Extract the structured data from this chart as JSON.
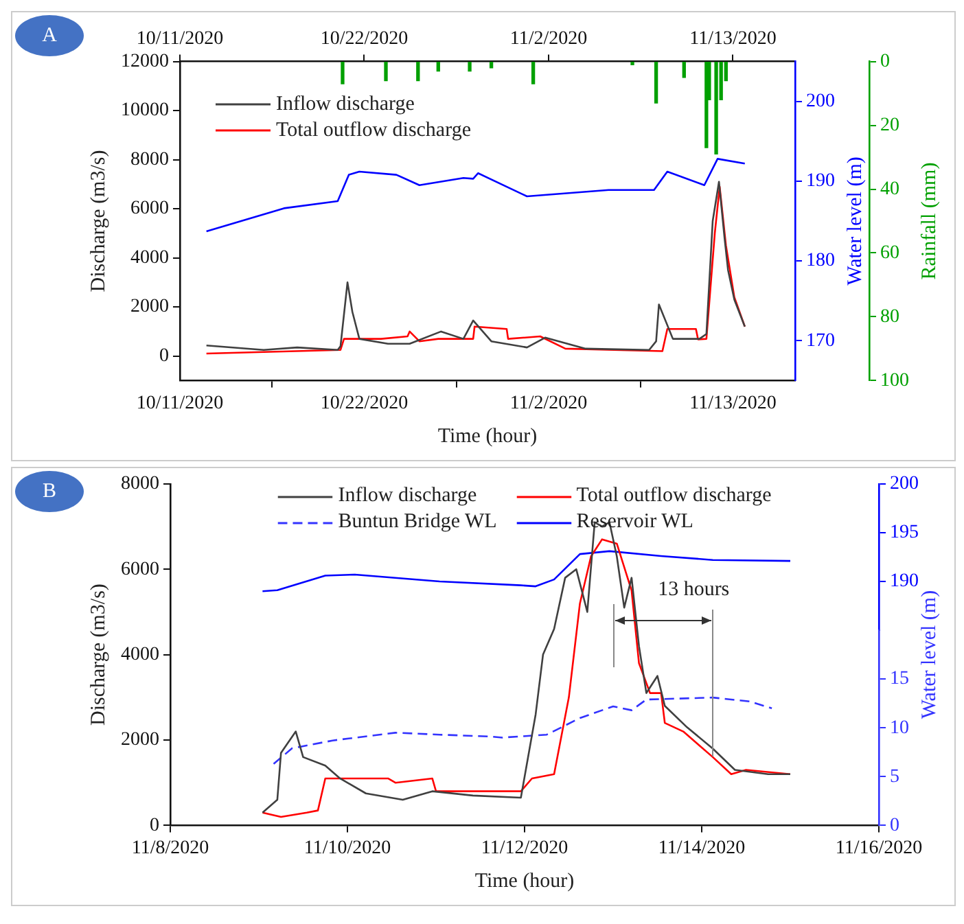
{
  "chart_data": [
    {
      "type": "line",
      "annotations": [
        "A"
      ],
      "xlabel": "Time (hour)",
      "ylabel": "Discharge (m3/s)",
      "y2label": "Water level (m)",
      "y3label": "Rainfall (mm)",
      "xlim": [
        "2020-10-11",
        "2020-11-16T17:00"
      ],
      "xticks": [
        {
          "value": "2020-10-11",
          "label": "10/11/2020"
        },
        {
          "value": "2020-10-22",
          "label": "10/22/2020"
        },
        {
          "value": "2020-11-02",
          "label": "11/2/2020"
        },
        {
          "value": "2020-11-13",
          "label": "11/13/2020"
        }
      ],
      "x2lim": [
        "2020-10-11",
        "2020-11-16T17:00"
      ],
      "x2ticks": [
        {
          "value": "2020-10-11",
          "label": "10/11/2020"
        },
        {
          "value": "2020-10-22",
          "label": "10/22/2020"
        },
        {
          "value": "2020-11-02",
          "label": "11/2/2020"
        },
        {
          "value": "2020-11-13",
          "label": "11/13/2020"
        }
      ],
      "ylim": [
        -1000,
        12000
      ],
      "yticks": [
        0,
        2000,
        4000,
        6000,
        8000,
        10000,
        12000
      ],
      "y2lim": [
        165,
        205
      ],
      "y2ticks": [
        170,
        180,
        190,
        200
      ],
      "y3lim": [
        100,
        0
      ],
      "y3ticks": [
        0,
        20,
        40,
        60,
        80,
        100
      ],
      "legend": "top left",
      "series": [
        {
          "name": "Inflow discharge",
          "color": "#404040",
          "x": [
            "2020-10-12T14:00",
            "2020-10-16T00:00",
            "2020-10-18T00:00",
            "2020-10-20T10:00",
            "2020-10-20T14:00",
            "2020-10-21T00:00",
            "2020-10-21T07:00",
            "2020-10-21T17:00",
            "2020-10-23T10:00",
            "2020-10-24T17:00",
            "2020-10-26T14:00",
            "2020-10-27T22:00",
            "2020-10-28T12:00",
            "2020-10-29T14:00",
            "2020-10-31T17:00",
            "2020-11-01T19:00",
            "2020-11-04T05:00",
            "2020-11-08T00:00",
            "2020-11-08T10:00",
            "2020-11-08T14:00",
            "2020-11-09T10:00",
            "2020-11-11T00:00",
            "2020-11-11T10:00",
            "2020-11-11T19:00",
            "2020-11-12T04:00",
            "2020-11-12T12:00",
            "2020-11-12T17:00",
            "2020-11-13T02:00",
            "2020-11-13T17:00"
          ],
          "values": [
            430,
            250,
            350,
            250,
            400,
            3000,
            1800,
            700,
            500,
            500,
            1000,
            700,
            1450,
            600,
            350,
            750,
            300,
            250,
            600,
            2100,
            700,
            700,
            900,
            5500,
            7100,
            4800,
            3500,
            2300,
            1200
          ]
        },
        {
          "name": "Total outflow discharge",
          "color": "#ff0000",
          "x": [
            "2020-10-12T14:00",
            "2020-10-20T14:00",
            "2020-10-20T19:00",
            "2020-10-23T00:00",
            "2020-10-24T14:00",
            "2020-10-24T17:00",
            "2020-10-25T07:00",
            "2020-10-26T10:00",
            "2020-10-28T12:00",
            "2020-10-28T14:00",
            "2020-10-30T12:00",
            "2020-10-30T14:00",
            "2020-11-01T12:00",
            "2020-11-03T00:00",
            "2020-11-08T19:00",
            "2020-11-09T02:00",
            "2020-11-10T19:00",
            "2020-11-10T22:00",
            "2020-11-11T10:00",
            "2020-11-11T22:00",
            "2020-11-12T05:00",
            "2020-11-12T14:00",
            "2020-11-13T02:00",
            "2020-11-13T17:00"
          ],
          "values": [
            100,
            250,
            700,
            700,
            800,
            1000,
            600,
            700,
            700,
            1200,
            1100,
            700,
            800,
            300,
            200,
            1100,
            1100,
            680,
            700,
            5000,
            6900,
            4500,
            2400,
            1200
          ]
        },
        {
          "color": "#0000ff",
          "axis": "y2",
          "x": [
            "2020-10-12T14:00",
            "2020-10-17T05:00",
            "2020-10-20T10:00",
            "2020-10-21T02:00",
            "2020-10-21T17:00",
            "2020-10-23T22:00",
            "2020-10-25T07:00",
            "2020-10-27T22:00",
            "2020-10-28T12:00",
            "2020-10-28T19:00",
            "2020-10-31T17:00",
            "2020-11-05T14:00",
            "2020-11-08T07:00",
            "2020-11-09T02:00",
            "2020-11-11T07:00",
            "2020-11-12T02:00",
            "2020-11-13T17:00"
          ],
          "values": [
            183.7,
            186.6,
            187.5,
            190.8,
            191.2,
            190.8,
            189.5,
            190.4,
            190.3,
            191.0,
            188.1,
            188.9,
            188.9,
            191.2,
            189.5,
            192.8,
            192.2
          ]
        },
        {
          "type": "bar",
          "color": "#00a000",
          "axis": "y3",
          "x": [
            "2020-10-20T17:00",
            "2020-10-23T07:00",
            "2020-10-25T05:00",
            "2020-10-26T10:00",
            "2020-10-28T07:00",
            "2020-10-29T14:00",
            "2020-11-01T02:00",
            "2020-11-07T00:00",
            "2020-11-08T10:00",
            "2020-11-10T02:00",
            "2020-11-11T10:00",
            "2020-11-11T14:00",
            "2020-11-12T00:00",
            "2020-11-12T07:00",
            "2020-11-12T14:00"
          ],
          "values": [
            7,
            6,
            6,
            3,
            3,
            2,
            7,
            1,
            13,
            5,
            27,
            12,
            29,
            12,
            6
          ]
        }
      ]
    },
    {
      "type": "line",
      "annotations": [
        "B",
        {
          "text": "13 hours",
          "x": "2020-11-14T03:00",
          "y": 1600
        }
      ],
      "xlabel": "Time (hour)",
      "ylabel": "Discharge (m3/s)",
      "y2label": "Water level (m)",
      "xlim": [
        "2020-11-08",
        "2020-11-16"
      ],
      "xticks": [
        {
          "value": "2020-11-08",
          "label": "11/8/2020"
        },
        {
          "value": "2020-11-10",
          "label": "11/10/2020"
        },
        {
          "value": "2020-11-12",
          "label": "11/12/2020"
        },
        {
          "value": "2020-11-14",
          "label": "11/14/2020"
        },
        {
          "value": "2020-11-16",
          "label": "11/16/2020"
        }
      ],
      "ylim": [
        0,
        8000
      ],
      "yticks": [
        0,
        2000,
        4000,
        6000,
        8000
      ],
      "y2lim": [
        0,
        20
      ],
      "y2ticks": [
        0,
        5,
        10,
        15
      ],
      "y3lim": [
        185,
        200
      ],
      "y3ticks": [
        190,
        195,
        200
      ],
      "legend": "top",
      "series": [
        {
          "name": "Inflow discharge",
          "color": "#404040",
          "x": [
            "2020-11-09T01:00",
            "2020-11-09T05:00",
            "2020-11-09T06:00",
            "2020-11-09T10:00",
            "2020-11-09T12:00",
            "2020-11-09T18:00",
            "2020-11-09T22:00",
            "2020-11-10T05:00",
            "2020-11-10T15:00",
            "2020-11-10T23:00",
            "2020-11-11T10:00",
            "2020-11-11T23:00",
            "2020-11-12T03:00",
            "2020-11-12T05:00",
            "2020-11-12T08:00",
            "2020-11-12T11:00",
            "2020-11-12T14:00",
            "2020-11-12T17:00",
            "2020-11-12T19:00",
            "2020-11-12T21:00",
            "2020-11-12T23:00",
            "2020-11-13T01:00",
            "2020-11-13T03:00",
            "2020-11-13T05:00",
            "2020-11-13T07:00",
            "2020-11-13T09:00",
            "2020-11-13T12:00",
            "2020-11-13T14:00",
            "2020-11-13T20:00",
            "2020-11-14T03:00",
            "2020-11-14T09:00",
            "2020-11-14T18:00",
            "2020-11-15T00:00"
          ],
          "values": [
            300,
            600,
            1700,
            2200,
            1600,
            1400,
            1100,
            750,
            600,
            800,
            700,
            650,
            2600,
            4000,
            4600,
            5800,
            6000,
            5000,
            7100,
            7000,
            7100,
            6300,
            5100,
            5800,
            4200,
            3100,
            3500,
            2800,
            2300,
            1800,
            1300,
            1200,
            1200
          ]
        },
        {
          "name": "Total outflow discharge",
          "color": "#ff0000",
          "x": [
            "2020-11-09T01:00",
            "2020-11-09T06:00",
            "2020-11-09T13:00",
            "2020-11-09T16:00",
            "2020-11-09T18:00",
            "2020-11-10T11:00",
            "2020-11-10T13:00",
            "2020-11-10T23:00",
            "2020-11-11T00:00",
            "2020-11-11T23:00",
            "2020-11-12T02:00",
            "2020-11-12T08:00",
            "2020-11-12T12:00",
            "2020-11-12T15:00",
            "2020-11-12T18:00",
            "2020-11-12T21:00",
            "2020-11-13T01:00",
            "2020-11-13T05:00",
            "2020-11-13T07:00",
            "2020-11-13T10:00",
            "2020-11-13T13:00",
            "2020-11-13T14:00",
            "2020-11-13T19:00",
            "2020-11-13T23:00",
            "2020-11-14T03:00",
            "2020-11-14T08:00",
            "2020-11-14T12:00",
            "2020-11-15T00:00"
          ],
          "values": [
            300,
            200,
            300,
            350,
            1100,
            1100,
            1000,
            1100,
            800,
            800,
            1100,
            1200,
            3000,
            5200,
            6300,
            6700,
            6600,
            5500,
            3800,
            3100,
            3100,
            2400,
            2200,
            1900,
            1600,
            1200,
            1300,
            1200
          ]
        },
        {
          "name": "Buntun Bridge WL",
          "color": "#3333ff",
          "axis": "y2",
          "line_style": "dashed",
          "x": [
            "2020-11-09T04:00",
            "2020-11-09T09:00",
            "2020-11-09T20:00",
            "2020-11-10T13:00",
            "2020-11-11T01:00",
            "2020-11-11T15:00",
            "2020-11-11T18:00",
            "2020-11-12T06:00",
            "2020-11-12T15:00",
            "2020-11-13T00:00",
            "2020-11-13T05:00",
            "2020-11-13T09:00",
            "2020-11-13T18:00",
            "2020-11-14T03:00",
            "2020-11-14T13:00",
            "2020-11-14T19:00"
          ],
          "values": [
            6.3,
            7.9,
            8.7,
            9.5,
            9.3,
            9.1,
            9.0,
            9.3,
            11.0,
            12.2,
            11.8,
            12.9,
            13.0,
            13.1,
            12.7,
            12.0
          ]
        },
        {
          "name": "Reservoir WL",
          "color": "#0000ff",
          "axis": "y3",
          "x": [
            "2020-11-09T01:00",
            "2020-11-09T05:00",
            "2020-11-09T18:00",
            "2020-11-10T02:00",
            "2020-11-11T01:00",
            "2020-11-11T23:00",
            "2020-11-12T03:00",
            "2020-11-12T08:00",
            "2020-11-12T15:00",
            "2020-11-12T23:00",
            "2020-11-13T13:00",
            "2020-11-14T03:00",
            "2020-11-15T00:00"
          ],
          "values": [
            189.0,
            189.1,
            190.6,
            190.7,
            190.0,
            189.6,
            189.5,
            190.2,
            192.8,
            193.1,
            192.6,
            192.2,
            192.1
          ]
        }
      ]
    }
  ]
}
